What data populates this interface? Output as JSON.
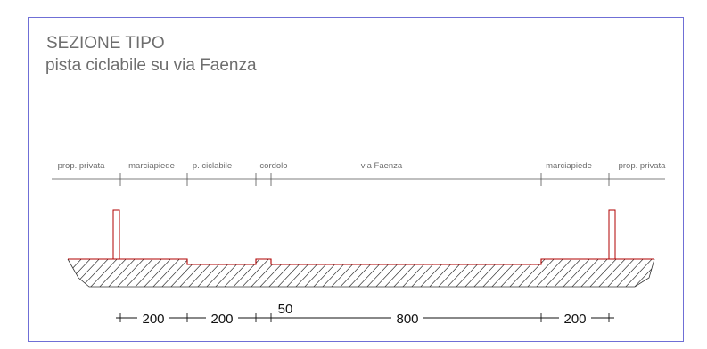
{
  "title": "SEZIONE TIPO",
  "subtitle": "pista ciclabile su via Faenza",
  "zones": [
    {
      "label": "prop. privata"
    },
    {
      "label": "marciapiede"
    },
    {
      "label": "p. ciclabile"
    },
    {
      "label": "cordolo"
    },
    {
      "label": "via Faenza"
    },
    {
      "label": "marciapiede"
    },
    {
      "label": "prop. privata"
    }
  ],
  "dimensions": [
    {
      "label": "200"
    },
    {
      "label": "200"
    },
    {
      "label": "50"
    },
    {
      "label": "800"
    },
    {
      "label": "200"
    }
  ],
  "colors": {
    "frame": "#6f6fd6",
    "section_outline": "#b00000",
    "hatch": "#333333",
    "text": "#6e6e6e"
  }
}
